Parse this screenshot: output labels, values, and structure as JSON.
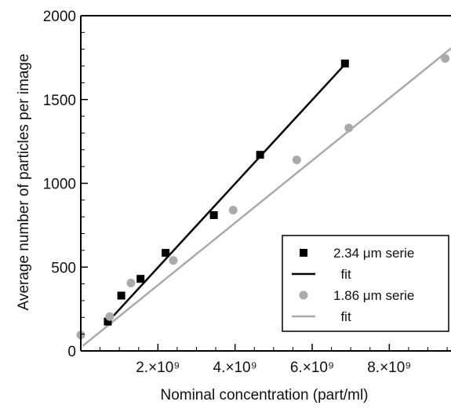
{
  "chart_data": {
    "type": "scatter",
    "xlabel": "Nominal concentration (part/ml)",
    "ylabel": "Average number of particles per image",
    "xlim": [
      0,
      9600000000.0
    ],
    "ylim": [
      0,
      2000
    ],
    "x_ticks": [
      {
        "value": 2000000000.0,
        "label": "2.×10⁹"
      },
      {
        "value": 4000000000.0,
        "label": "4.×10⁹"
      },
      {
        "value": 6000000000.0,
        "label": "6.×10⁹"
      },
      {
        "value": 8000000000.0,
        "label": "8.×10⁹"
      }
    ],
    "y_ticks": [
      {
        "value": 0,
        "label": "0"
      },
      {
        "value": 500,
        "label": "500"
      },
      {
        "value": 1000,
        "label": "1000"
      },
      {
        "value": 1500,
        "label": "1500"
      },
      {
        "value": 2000,
        "label": "2000"
      }
    ],
    "legend_position": "lower-right",
    "series": [
      {
        "name": "2.34 μm serie",
        "marker": "square",
        "color": "#000000",
        "points": [
          [
            700000000.0,
            175
          ],
          [
            1050000000.0,
            330
          ],
          [
            1550000000.0,
            430
          ],
          [
            2200000000.0,
            585
          ],
          [
            3450000000.0,
            810
          ],
          [
            4650000000.0,
            1170
          ],
          [
            6850000000.0,
            1715
          ]
        ]
      },
      {
        "name": "1.86 μm serie",
        "marker": "circle",
        "color": "#aaaaaa",
        "points": [
          [
            0.0,
            95
          ],
          [
            750000000.0,
            205
          ],
          [
            1300000000.0,
            405
          ],
          [
            2400000000.0,
            540
          ],
          [
            3950000000.0,
            840
          ],
          [
            5600000000.0,
            1140
          ],
          [
            6950000000.0,
            1330
          ],
          [
            9450000000.0,
            1745
          ]
        ]
      }
    ],
    "fits": [
      {
        "name": "fit",
        "color": "#000000",
        "from": [
          850000000.0,
          210
        ],
        "to": [
          6850000000.0,
          1710
        ]
      },
      {
        "name": "fit",
        "color": "#aaaaaa",
        "from": [
          50000000.0,
          30
        ],
        "to": [
          9600000000.0,
          1805
        ]
      }
    ]
  }
}
